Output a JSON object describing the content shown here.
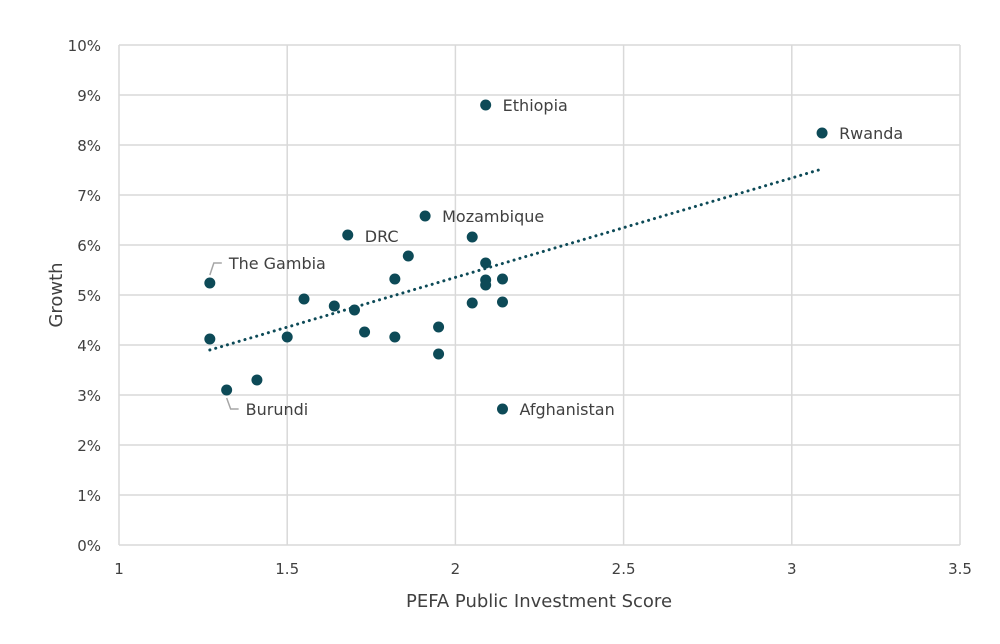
{
  "chart_data": {
    "type": "scatter",
    "title": "",
    "xlabel": "PEFA Public Investment Score",
    "ylabel": "Growth",
    "xlim": [
      1,
      3.5
    ],
    "ylim": [
      0,
      10
    ],
    "x_ticks": [
      "1",
      "1.5",
      "2",
      "2.5",
      "3",
      "3.5"
    ],
    "y_ticks": [
      "0%",
      "1%",
      "2%",
      "3%",
      "4%",
      "5%",
      "6%",
      "7%",
      "8%",
      "9%",
      "10%"
    ],
    "grid": true,
    "legend": "none",
    "colors": {
      "points": "#0d4a57",
      "trendline": "#0d4a57",
      "grid": "#d9d9d9"
    },
    "points": [
      {
        "x": 1.27,
        "y": 5.24,
        "label": "The Gambia"
      },
      {
        "x": 1.27,
        "y": 4.12
      },
      {
        "x": 1.32,
        "y": 3.1,
        "label": "Burundi"
      },
      {
        "x": 1.41,
        "y": 3.3
      },
      {
        "x": 1.5,
        "y": 4.16
      },
      {
        "x": 1.55,
        "y": 4.92
      },
      {
        "x": 1.64,
        "y": 4.78
      },
      {
        "x": 1.68,
        "y": 6.2,
        "label": "DRC"
      },
      {
        "x": 1.7,
        "y": 4.7
      },
      {
        "x": 1.73,
        "y": 4.26
      },
      {
        "x": 1.82,
        "y": 5.32
      },
      {
        "x": 1.82,
        "y": 4.16
      },
      {
        "x": 1.86,
        "y": 5.78
      },
      {
        "x": 1.91,
        "y": 6.58,
        "label": "Mozambique"
      },
      {
        "x": 1.95,
        "y": 4.36
      },
      {
        "x": 1.95,
        "y": 3.82
      },
      {
        "x": 2.05,
        "y": 6.16
      },
      {
        "x": 2.05,
        "y": 4.84
      },
      {
        "x": 2.09,
        "y": 8.8,
        "label": "Ethiopia"
      },
      {
        "x": 2.09,
        "y": 5.64
      },
      {
        "x": 2.09,
        "y": 5.3
      },
      {
        "x": 2.09,
        "y": 5.2
      },
      {
        "x": 2.14,
        "y": 5.32
      },
      {
        "x": 2.14,
        "y": 4.86
      },
      {
        "x": 2.14,
        "y": 2.72,
        "label": "Afghanistan"
      },
      {
        "x": 3.09,
        "y": 8.24,
        "label": "Rwanda"
      }
    ],
    "trendline": {
      "type": "linear",
      "x": [
        1.27,
        3.09
      ],
      "y": [
        3.9,
        7.52
      ]
    }
  }
}
